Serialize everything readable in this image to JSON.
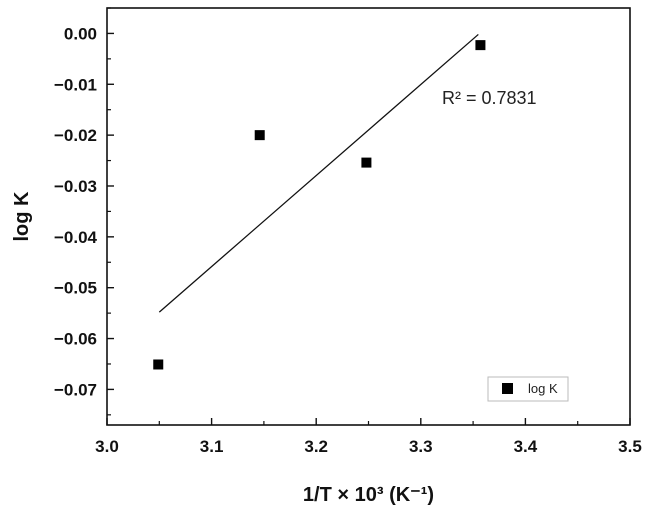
{
  "chart_data": {
    "type": "scatter",
    "xlabel": "1/T × 10³ (K⁻¹)",
    "ylabel": "log K",
    "xlim": [
      3.0,
      3.5
    ],
    "ylim": [
      -0.077,
      0.005
    ],
    "x_ticks": [
      "3.0",
      "3.1",
      "3.2",
      "3.3",
      "3.4",
      "3.5"
    ],
    "y_ticks": [
      "0.00",
      "-0.01",
      "-0.02",
      "-0.03",
      "-0.04",
      "-0.05",
      "-0.06",
      "-0.07"
    ],
    "series": [
      {
        "name": "log K",
        "marker": "square",
        "color": "#000000",
        "x": [
          3.049,
          3.146,
          3.248,
          3.357
        ],
        "y": [
          -0.0651,
          -0.02,
          -0.0254,
          -0.0023
        ]
      }
    ],
    "fit_line": {
      "x": [
        3.05,
        3.355
      ],
      "y": [
        -0.0548,
        -0.0002
      ],
      "r2_text": "R² = 0.7831"
    },
    "grid": false,
    "legend_position": "bottom-right"
  }
}
